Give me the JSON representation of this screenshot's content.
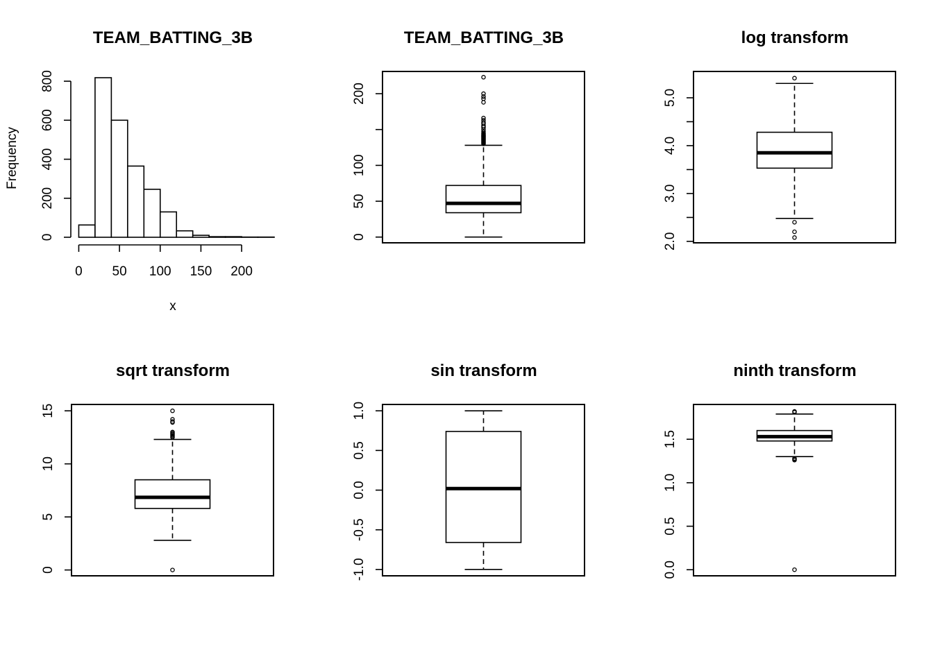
{
  "chart_data": [
    {
      "id": "hist",
      "type": "histogram",
      "title": "TEAM_BATTING_3B",
      "xlabel": "x",
      "ylabel": "Frequency",
      "xlim": [
        -20,
        240
      ],
      "ylim": [
        0,
        850
      ],
      "x_ticks": [
        0,
        50,
        100,
        150,
        200
      ],
      "x_tick_labels": [
        "0",
        "50",
        "100",
        "150",
        "200"
      ],
      "y_ticks": [
        0,
        200,
        400,
        600,
        800
      ],
      "y_tick_labels": [
        "0",
        "200",
        "400",
        "600",
        "800"
      ],
      "bins": [
        {
          "x0": 0,
          "x1": 20,
          "count": 63
        },
        {
          "x0": 20,
          "x1": 40,
          "count": 818
        },
        {
          "x0": 40,
          "x1": 60,
          "count": 600
        },
        {
          "x0": 60,
          "x1": 80,
          "count": 365
        },
        {
          "x0": 80,
          "x1": 100,
          "count": 246
        },
        {
          "x0": 100,
          "x1": 120,
          "count": 130
        },
        {
          "x0": 120,
          "x1": 140,
          "count": 33
        },
        {
          "x0": 140,
          "x1": 160,
          "count": 10
        },
        {
          "x0": 160,
          "x1": 180,
          "count": 3
        },
        {
          "x0": 180,
          "x1": 200,
          "count": 3
        },
        {
          "x0": 200,
          "x1": 220,
          "count": 1
        },
        {
          "x0": 220,
          "x1": 240,
          "count": 1
        }
      ]
    },
    {
      "id": "box-raw",
      "type": "boxplot",
      "title": "TEAM_BATTING_3B",
      "ylim": [
        -8,
        231
      ],
      "y_ticks": [
        0,
        50,
        100,
        150,
        200
      ],
      "y_tick_labels": [
        "0",
        "50",
        "100",
        "",
        "200"
      ],
      "whisker_low": 0,
      "q1": 34,
      "median": 47,
      "q3": 72,
      "whisker_high": 128,
      "outliers": [
        130,
        131,
        132,
        133,
        134,
        135,
        136,
        137,
        138,
        139,
        140,
        141,
        142,
        143,
        144,
        145,
        147,
        150,
        153,
        155,
        158,
        160,
        163,
        166,
        188,
        193,
        196,
        200,
        223
      ]
    },
    {
      "id": "box-log",
      "type": "boxplot",
      "title": "log transform",
      "ylim": [
        1.97,
        5.55
      ],
      "y_ticks": [
        2.0,
        2.5,
        3.0,
        3.5,
        4.0,
        4.5,
        5.0
      ],
      "y_tick_labels": [
        "2.0",
        "",
        "3.0",
        "",
        "4.0",
        "",
        "5.0"
      ],
      "whisker_low": 2.48,
      "q1": 3.53,
      "median": 3.85,
      "q3": 4.28,
      "whisker_high": 5.3,
      "outliers": [
        2.08,
        2.2,
        2.4,
        5.41
      ]
    },
    {
      "id": "box-sqrt",
      "type": "boxplot",
      "title": "sqrt transform",
      "ylim": [
        -0.55,
        15.6
      ],
      "y_ticks": [
        0,
        5,
        10,
        15
      ],
      "y_tick_labels": [
        "0",
        "5",
        "10",
        "15"
      ],
      "whisker_low": 2.8,
      "q1": 5.8,
      "median": 6.85,
      "q3": 8.5,
      "whisker_high": 12.3,
      "outliers": [
        0,
        12.5,
        12.6,
        12.7,
        12.8,
        12.9,
        13.0,
        13.9,
        14.0,
        14.2,
        15.0
      ]
    },
    {
      "id": "box-sin",
      "type": "boxplot",
      "title": "sin transform",
      "ylim": [
        -1.08,
        1.08
      ],
      "y_ticks": [
        -1.0,
        -0.5,
        0.0,
        0.5,
        1.0
      ],
      "y_tick_labels": [
        "-1.0",
        "-0.5",
        "0.0",
        "0.5",
        "1.0"
      ],
      "whisker_low": -1.0,
      "q1": -0.66,
      "median": 0.02,
      "q3": 0.74,
      "whisker_high": 1.0,
      "outliers": []
    },
    {
      "id": "box-ninth",
      "type": "boxplot",
      "title": "ninth transform",
      "ylim": [
        -0.07,
        1.9
      ],
      "y_ticks": [
        0.0,
        0.5,
        1.0,
        1.5
      ],
      "y_tick_labels": [
        "0.0",
        "0.5",
        "1.0",
        "1.5"
      ],
      "whisker_low": 1.3,
      "q1": 1.48,
      "median": 1.53,
      "q3": 1.6,
      "whisker_high": 1.79,
      "outliers": [
        0.0,
        1.26,
        1.27,
        1.28,
        1.81,
        1.82
      ]
    }
  ]
}
